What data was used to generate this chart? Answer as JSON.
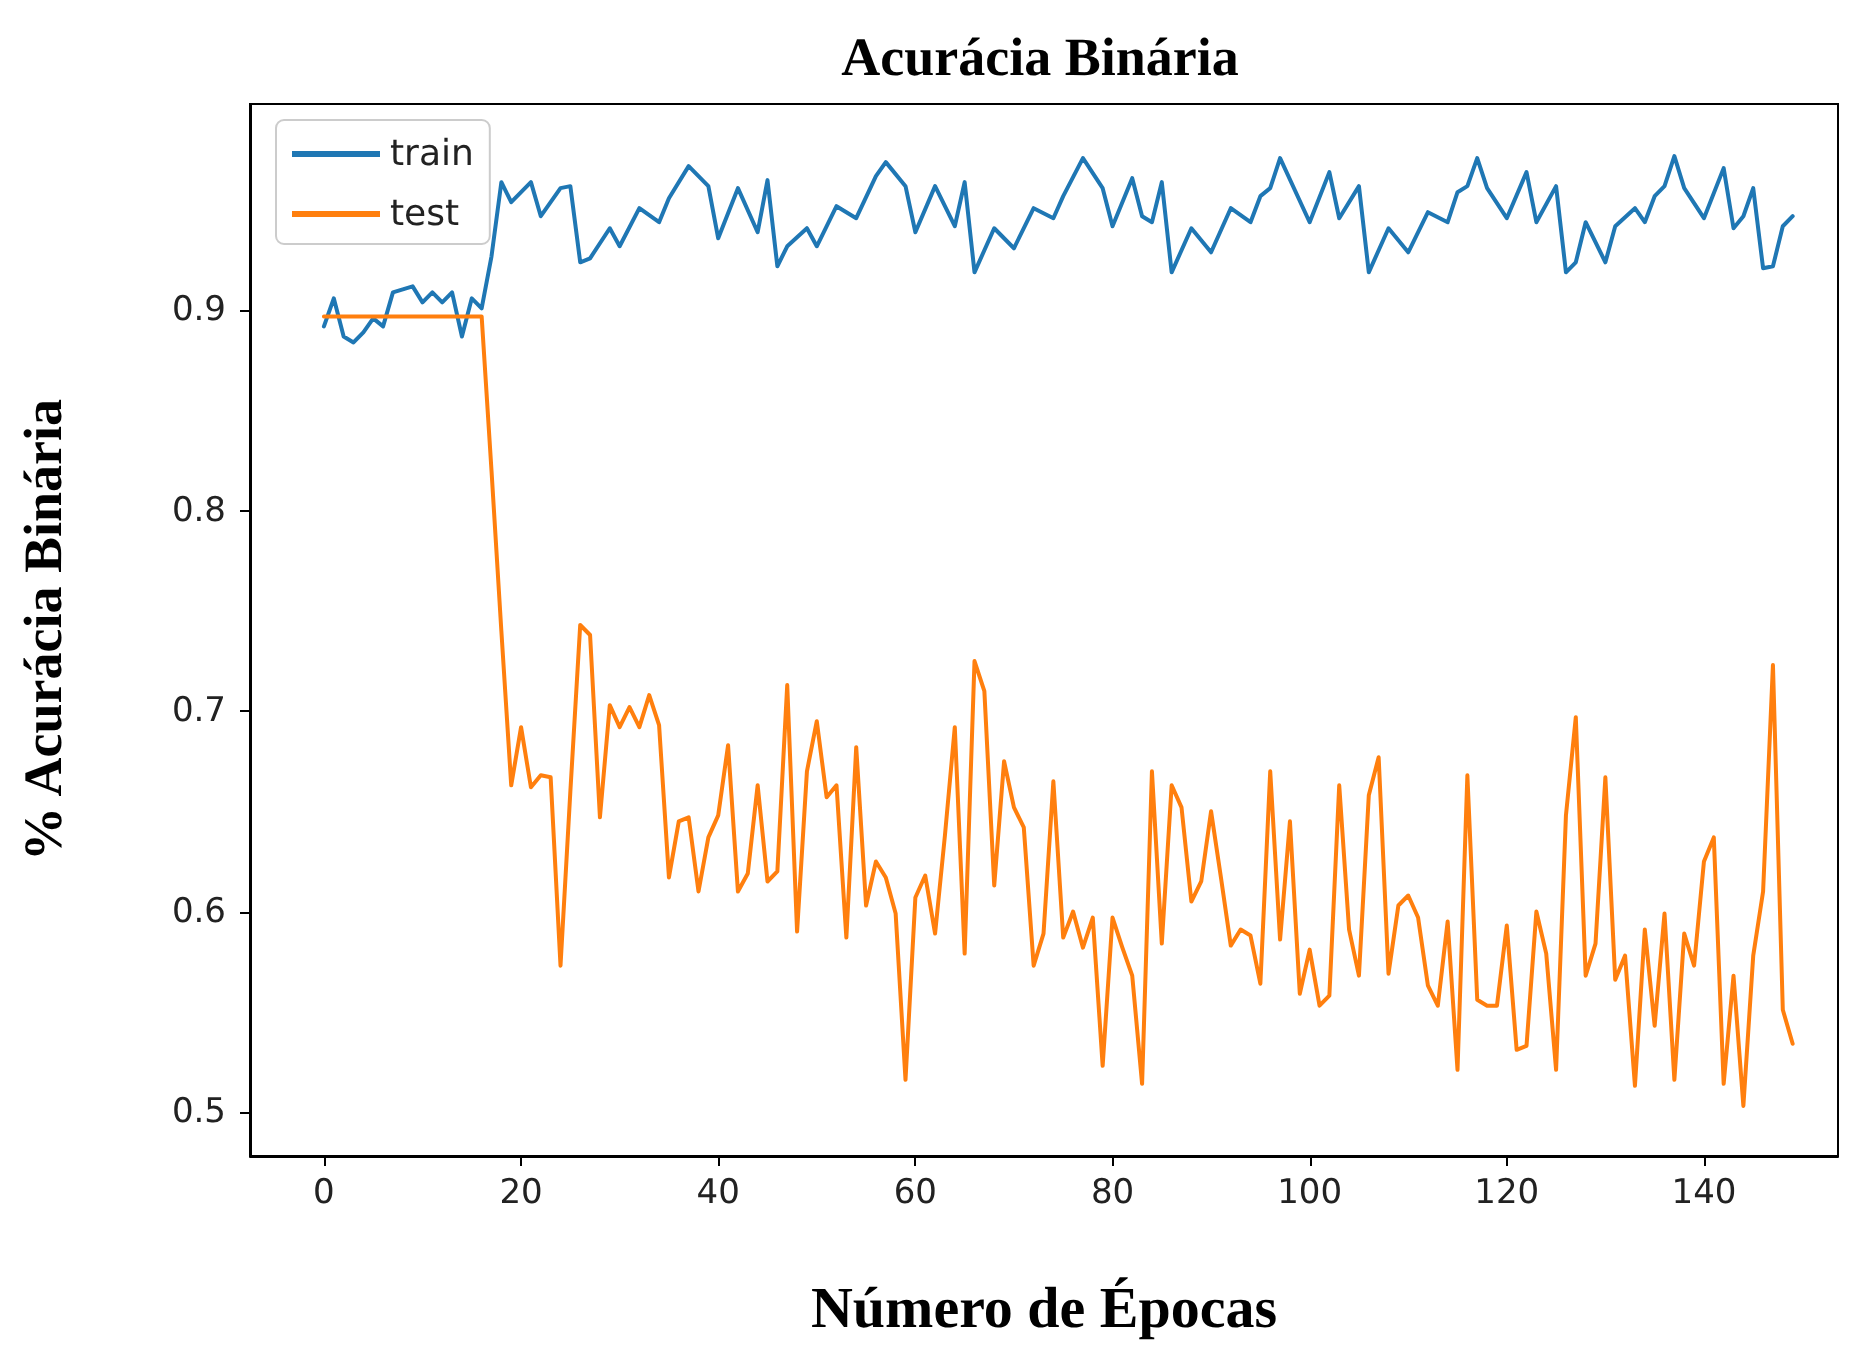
{
  "chart_data": {
    "type": "line",
    "title": "Acurácia Binária",
    "xlabel": "Número de Épocas",
    "ylabel": "% Acurácia Binária",
    "xlim": [
      -7.5,
      153.6
    ],
    "ylim": [
      0.478,
      1.003
    ],
    "xticks": [
      0,
      20,
      40,
      60,
      80,
      100,
      120,
      140
    ],
    "yticks": [
      0.5,
      0.6,
      0.7,
      0.8,
      0.9
    ],
    "grid": false,
    "legend": "top left",
    "series": [
      {
        "name": "train",
        "color": "#1f77b4",
        "x": [
          0,
          1,
          2,
          3,
          4,
          5,
          6,
          7,
          9,
          10,
          11,
          12,
          13,
          14,
          15,
          16,
          17,
          18,
          19,
          21,
          22,
          24,
          25,
          26,
          27,
          29,
          30,
          32,
          34,
          35,
          37,
          39,
          40,
          42,
          44,
          45,
          46,
          47,
          49,
          50,
          52,
          54,
          56,
          57,
          59,
          60,
          62,
          64,
          65,
          66,
          68,
          70,
          72,
          74,
          75,
          77,
          79,
          80,
          82,
          83,
          84,
          85,
          86,
          88,
          90,
          92,
          94,
          95,
          96,
          97,
          100,
          102,
          103,
          105,
          106,
          108,
          110,
          112,
          114,
          115,
          116,
          117,
          118,
          120,
          122,
          123,
          125,
          126,
          127,
          128,
          130,
          131,
          133,
          134,
          135,
          136,
          137,
          138,
          140,
          142,
          143,
          144,
          145,
          146,
          147,
          148,
          149
        ],
        "values": [
          0.892,
          0.906,
          0.887,
          0.884,
          0.889,
          0.896,
          0.892,
          0.909,
          0.912,
          0.904,
          0.909,
          0.904,
          0.909,
          0.887,
          0.906,
          0.901,
          0.927,
          0.964,
          0.954,
          0.964,
          0.947,
          0.961,
          0.962,
          0.924,
          0.926,
          0.941,
          0.932,
          0.951,
          0.944,
          0.956,
          0.972,
          0.962,
          0.936,
          0.961,
          0.939,
          0.965,
          0.922,
          0.932,
          0.941,
          0.932,
          0.952,
          0.946,
          0.967,
          0.974,
          0.962,
          0.939,
          0.962,
          0.942,
          0.964,
          0.919,
          0.941,
          0.931,
          0.951,
          0.946,
          0.957,
          0.976,
          0.961,
          0.942,
          0.966,
          0.947,
          0.944,
          0.964,
          0.919,
          0.941,
          0.929,
          0.951,
          0.944,
          0.957,
          0.961,
          0.976,
          0.944,
          0.969,
          0.946,
          0.962,
          0.919,
          0.941,
          0.929,
          0.949,
          0.944,
          0.959,
          0.962,
          0.976,
          0.961,
          0.946,
          0.969,
          0.944,
          0.962,
          0.919,
          0.924,
          0.944,
          0.924,
          0.942,
          0.951,
          0.944,
          0.957,
          0.962,
          0.977,
          0.961,
          0.946,
          0.971,
          0.941,
          0.947,
          0.961,
          0.921,
          0.922,
          0.942,
          0.947
        ]
      },
      {
        "name": "test",
        "color": "#ff7f0e",
        "x": [
          0,
          16,
          17,
          18,
          19,
          20,
          21,
          22,
          23,
          24,
          25,
          26,
          27,
          28,
          29,
          30,
          31,
          32,
          33,
          34,
          35,
          36,
          37,
          38,
          39,
          40,
          41,
          42,
          43,
          44,
          45,
          46,
          47,
          48,
          49,
          50,
          51,
          52,
          53,
          54,
          55,
          56,
          57,
          58,
          59,
          60,
          61,
          62,
          63,
          64,
          65,
          66,
          67,
          68,
          69,
          70,
          71,
          72,
          73,
          74,
          75,
          76,
          77,
          78,
          79,
          80,
          81,
          82,
          83,
          84,
          85,
          86,
          87,
          88,
          89,
          90,
          91,
          92,
          93,
          94,
          95,
          96,
          97,
          98,
          99,
          100,
          101,
          102,
          103,
          104,
          105,
          106,
          107,
          108,
          109,
          110,
          111,
          112,
          113,
          114,
          115,
          116,
          117,
          118,
          119,
          120,
          121,
          122,
          123,
          124,
          125,
          126,
          127,
          128,
          129,
          130,
          131,
          132,
          133,
          134,
          135,
          136,
          137,
          138,
          139,
          140,
          141,
          142,
          143,
          144,
          145,
          146,
          147,
          148,
          149
        ],
        "values": [
          0.897,
          0.897,
          0.82,
          0.74,
          0.663,
          0.692,
          0.662,
          0.668,
          0.667,
          0.573,
          0.66,
          0.743,
          0.738,
          0.647,
          0.703,
          0.692,
          0.702,
          0.692,
          0.708,
          0.693,
          0.617,
          0.645,
          0.647,
          0.61,
          0.637,
          0.648,
          0.683,
          0.61,
          0.619,
          0.663,
          0.615,
          0.62,
          0.713,
          0.59,
          0.67,
          0.695,
          0.657,
          0.663,
          0.587,
          0.682,
          0.603,
          0.625,
          0.617,
          0.599,
          0.516,
          0.607,
          0.618,
          0.589,
          0.638,
          0.692,
          0.579,
          0.725,
          0.71,
          0.613,
          0.675,
          0.652,
          0.642,
          0.573,
          0.589,
          0.665,
          0.587,
          0.6,
          0.582,
          0.597,
          0.523,
          0.597,
          0.582,
          0.568,
          0.514,
          0.67,
          0.584,
          0.663,
          0.652,
          0.605,
          0.615,
          0.65,
          0.617,
          0.583,
          0.591,
          0.588,
          0.564,
          0.67,
          0.586,
          0.645,
          0.559,
          0.581,
          0.553,
          0.558,
          0.663,
          0.591,
          0.568,
          0.658,
          0.677,
          0.569,
          0.603,
          0.608,
          0.597,
          0.563,
          0.553,
          0.595,
          0.521,
          0.668,
          0.556,
          0.553,
          0.553,
          0.593,
          0.531,
          0.533,
          0.6,
          0.579,
          0.521,
          0.648,
          0.697,
          0.568,
          0.584,
          0.667,
          0.566,
          0.578,
          0.513,
          0.591,
          0.543,
          0.599,
          0.516,
          0.589,
          0.573,
          0.625,
          0.637,
          0.514,
          0.568,
          0.503,
          0.578,
          0.61,
          0.723,
          0.551,
          0.534
        ]
      }
    ]
  }
}
